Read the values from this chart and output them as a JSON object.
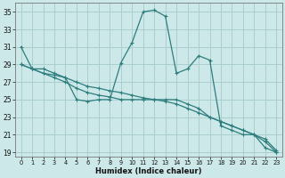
{
  "xlabel": "Humidex (Indice chaleur)",
  "bg_color": "#cce8e8",
  "grid_color": "#aacfcf",
  "line_color": "#2e7d7d",
  "xlim": [
    -0.5,
    23.5
  ],
  "ylim": [
    18.5,
    36.0
  ],
  "yticks": [
    19,
    21,
    23,
    25,
    27,
    29,
    31,
    33,
    35
  ],
  "xticks": [
    0,
    1,
    2,
    3,
    4,
    5,
    6,
    7,
    8,
    9,
    10,
    11,
    12,
    13,
    14,
    15,
    16,
    17,
    18,
    19,
    20,
    21,
    22,
    23
  ],
  "series1_x": [
    0,
    1,
    2,
    3,
    4,
    5,
    6,
    7,
    8,
    9,
    10,
    11,
    12,
    13,
    14,
    15,
    16,
    17,
    18,
    19,
    20,
    21,
    22,
    23
  ],
  "series1_y": [
    31,
    28.5,
    28.5,
    28,
    27.5,
    25,
    24.8,
    25,
    25,
    29.2,
    31.5,
    35,
    35.2,
    34.5,
    28,
    28.5,
    30,
    29.5,
    22,
    21.5,
    21,
    21,
    19.5,
    19
  ],
  "series2_x": [
    0,
    1,
    2,
    3,
    4,
    5,
    6,
    7,
    8,
    9,
    10,
    11,
    12,
    13,
    14,
    15,
    16,
    17,
    18,
    19,
    20,
    21,
    22,
    23
  ],
  "series2_y": [
    29,
    28.5,
    28,
    27.5,
    27,
    26.3,
    25.8,
    25.5,
    25.3,
    25,
    25,
    25,
    25,
    25,
    25,
    24.5,
    24,
    23,
    22.5,
    22,
    21.5,
    21,
    20.2,
    19
  ],
  "series3_x": [
    0,
    1,
    2,
    3,
    4,
    5,
    6,
    7,
    8,
    9,
    10,
    11,
    12,
    13,
    14,
    15,
    16,
    17,
    18,
    19,
    20,
    21,
    22,
    23
  ],
  "series3_y": [
    29,
    28.5,
    28,
    27.8,
    27.5,
    27,
    26.5,
    26.3,
    26,
    25.8,
    25.5,
    25.2,
    25,
    24.8,
    24.5,
    24,
    23.5,
    23,
    22.5,
    22,
    21.5,
    21,
    20.5,
    19.2
  ]
}
